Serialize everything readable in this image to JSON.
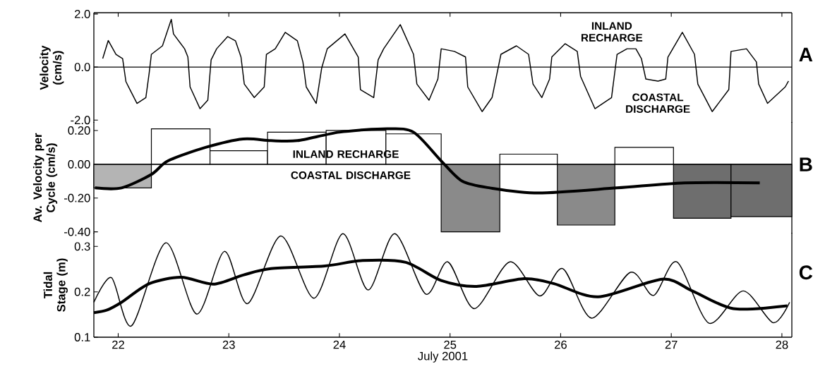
{
  "chart_data": [
    {
      "type": "line",
      "ylabel": "Velocity (cm/s)",
      "xlim": [
        21.78,
        28.09
      ],
      "xticks": [
        22,
        23,
        24,
        25,
        26,
        27,
        28
      ],
      "ylim": [
        -2.1,
        2.05
      ],
      "yticks": [
        {
          "value": -2.0,
          "label": "-2.0"
        },
        {
          "value": 0.0,
          "label": "0.0"
        },
        {
          "value": 2.0,
          "label": "2.0"
        }
      ],
      "tick_labels": "y",
      "ref_lines": [
        {
          "axis": "y",
          "value": 0,
          "color": "#000000"
        }
      ],
      "annotations": [
        "INLAND RECHARGE",
        "COASTAL DISCHARGE",
        "A"
      ],
      "series": [
        {
          "color": "#000000",
          "x": [
            21.86,
            21.91,
            21.98,
            22.04,
            22.07,
            22.1,
            22.17,
            22.25,
            22.28,
            22.3,
            22.4,
            22.48,
            22.5,
            22.6,
            22.63,
            22.65,
            22.74,
            22.81,
            22.84,
            22.89,
            22.99,
            23.06,
            23.11,
            23.14,
            23.23,
            23.32,
            23.34,
            23.42,
            23.51,
            23.62,
            23.67,
            23.7,
            23.79,
            23.84,
            23.89,
            24.05,
            24.17,
            24.19,
            24.31,
            24.35,
            24.4,
            24.55,
            24.67,
            24.7,
            24.81,
            24.89,
            24.92,
            25.04,
            25.14,
            25.16,
            25.29,
            25.38,
            25.46,
            25.6,
            25.71,
            25.75,
            25.83,
            25.9,
            25.92,
            26.04,
            26.15,
            26.18,
            26.31,
            26.46,
            26.51,
            26.6,
            26.68,
            26.73,
            26.77,
            26.88,
            26.95,
            26.97,
            27.1,
            27.21,
            27.24,
            27.37,
            27.52,
            27.54,
            27.68,
            27.77,
            27.79,
            27.87,
            28.03,
            28.06
          ],
          "values": [
            0.32,
            1.0,
            0.48,
            0.32,
            -0.55,
            -0.8,
            -1.37,
            -1.15,
            -0.23,
            0.48,
            0.8,
            1.8,
            1.25,
            0.69,
            0.38,
            -0.75,
            -1.57,
            -1.25,
            0.27,
            0.69,
            1.15,
            0.99,
            0.38,
            -0.64,
            -1.15,
            -0.75,
            0.48,
            0.69,
            1.31,
            0.99,
            0.19,
            -0.75,
            -1.37,
            -0.03,
            0.69,
            1.25,
            0.38,
            -0.85,
            -1.15,
            0.27,
            0.69,
            1.6,
            0.48,
            -0.64,
            -1.25,
            -0.45,
            0.69,
            0.59,
            0.38,
            -0.75,
            -1.68,
            -1.15,
            0.48,
            0.8,
            0.48,
            -0.64,
            -1.15,
            -0.45,
            0.38,
            0.88,
            0.59,
            -0.35,
            -1.57,
            -1.15,
            0.48,
            0.69,
            0.69,
            0.32,
            -0.45,
            -0.53,
            -0.45,
            0.38,
            1.31,
            0.48,
            -0.64,
            -1.68,
            -0.85,
            0.59,
            0.69,
            0.19,
            -0.64,
            -1.37,
            -0.75,
            -0.53
          ]
        }
      ]
    },
    {
      "type": "histogram",
      "ylabel": "Av. Velocity per Cycle (cm/s)",
      "xlim": [
        21.78,
        28.09
      ],
      "ylim": [
        -0.41,
        0.25
      ],
      "yticks": [
        {
          "value": -0.4,
          "label": "-0.40"
        },
        {
          "value": -0.2,
          "label": "-0.20"
        },
        {
          "value": 0.0,
          "label": "0.00"
        },
        {
          "value": 0.2,
          "label": "0.20"
        }
      ],
      "tick_labels": "y",
      "ref_lines": [
        {
          "axis": "y",
          "value": 0,
          "color": "#000000"
        }
      ],
      "annotations": [
        "INLAND RECHARGE",
        "COASTAL DISCHARGE",
        "B"
      ],
      "series": [
        {
          "type": "histogram",
          "bins": [
            21.78,
            22.3,
            22.83,
            23.35,
            23.88,
            24.42,
            24.92,
            25.45,
            25.97,
            26.49,
            27.02,
            27.54,
            28.09
          ],
          "values": [
            -0.14,
            0.21,
            0.08,
            0.19,
            0.2,
            0.18,
            -0.4,
            0.06,
            -0.36,
            0.1,
            -0.32,
            -0.31
          ],
          "colors": [
            "#b4b4b4",
            "#ffffff",
            "#ffffff",
            "#ffffff",
            "#ffffff",
            "#ffffff",
            "#8a8a8a",
            "#ffffff",
            "#8a8a8a",
            "#ffffff",
            "#6e6e6e",
            "#6e6e6e"
          ]
        },
        {
          "type": "line",
          "color": "#000000",
          "x": [
            21.79,
            22.03,
            22.3,
            22.45,
            22.79,
            23.13,
            23.38,
            23.62,
            24.0,
            24.43,
            24.67,
            24.92,
            25.11,
            25.36,
            25.8,
            26.51,
            27.12,
            27.8
          ],
          "values": [
            -0.14,
            -0.14,
            -0.06,
            0.02,
            0.1,
            0.15,
            0.14,
            0.14,
            0.19,
            0.21,
            0.19,
            0.02,
            -0.1,
            -0.14,
            -0.17,
            -0.14,
            -0.11,
            -0.11
          ]
        }
      ]
    },
    {
      "type": "line",
      "ylabel": "Tidal Stage (m)",
      "xlabel": "July 2001",
      "xlim": [
        21.78,
        28.09
      ],
      "xticks": [
        22,
        23,
        24,
        25,
        26,
        27,
        28
      ],
      "ylim": [
        0.1,
        0.33
      ],
      "yticks": [
        0.1,
        0.2,
        0.3
      ],
      "annotations": [
        "C"
      ],
      "series": [
        {
          "color": "#000000",
          "x": [
            21.78,
            21.94,
            22.12,
            22.43,
            22.71,
            22.96,
            23.17,
            23.47,
            23.77,
            24.03,
            24.26,
            24.5,
            24.78,
            24.98,
            25.22,
            25.54,
            25.81,
            26.02,
            26.28,
            26.63,
            26.84,
            27.05,
            27.34,
            27.65,
            27.92,
            28.07
          ],
          "values": [
            0.177,
            0.231,
            0.125,
            0.308,
            0.151,
            0.289,
            0.174,
            0.323,
            0.186,
            0.328,
            0.204,
            0.328,
            0.195,
            0.266,
            0.163,
            0.266,
            0.191,
            0.251,
            0.142,
            0.243,
            0.192,
            0.266,
            0.131,
            0.202,
            0.132,
            0.177
          ]
        },
        {
          "color": "#000000",
          "x": [
            21.78,
            21.9,
            22.03,
            22.28,
            22.57,
            22.86,
            23.13,
            23.38,
            23.87,
            24.21,
            24.6,
            24.92,
            25.24,
            25.67,
            25.94,
            26.34,
            26.92,
            27.19,
            27.56,
            28.05
          ],
          "values": [
            0.154,
            0.16,
            0.177,
            0.218,
            0.232,
            0.217,
            0.237,
            0.251,
            0.257,
            0.269,
            0.265,
            0.225,
            0.212,
            0.229,
            0.218,
            0.189,
            0.228,
            0.202,
            0.163,
            0.169
          ]
        }
      ]
    }
  ]
}
